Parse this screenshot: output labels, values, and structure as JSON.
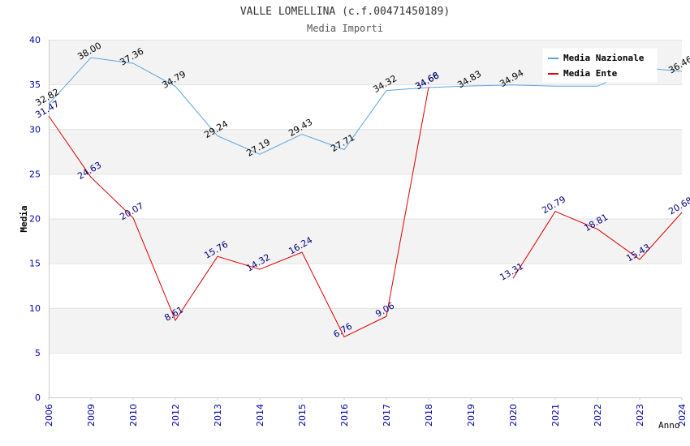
{
  "chart_data": {
    "type": "line",
    "title": "VALLE LOMELLINA (c.f.00471450189)",
    "subtitle": "Media Importi",
    "xlabel": "Anno",
    "ylabel": "Media",
    "ylim": [
      0,
      40
    ],
    "yticks": [
      "0",
      "5",
      "10",
      "15",
      "20",
      "25",
      "30",
      "35",
      "40"
    ],
    "categories": [
      "2006",
      "2009",
      "2010",
      "2012",
      "2013",
      "2014",
      "2015",
      "2016",
      "2017",
      "2018",
      "2019",
      "2020",
      "2021",
      "2022",
      "2023",
      "2024"
    ],
    "legend_position": "top-right",
    "series": [
      {
        "name": "Media Nazionale",
        "color": "#5ba3e0",
        "label_color": "#000000",
        "values": [
          32.82,
          38.0,
          37.36,
          34.79,
          29.24,
          27.19,
          29.43,
          27.71,
          34.32,
          34.66,
          34.83,
          34.94,
          34.8,
          34.8,
          36.9,
          36.46
        ],
        "labels": [
          "32.82",
          "38.00",
          "37.36",
          "34.79",
          "29.24",
          "27.19",
          "29.43",
          "27.71",
          "34.32",
          "34.66",
          "34.83",
          "34.94",
          null,
          null,
          null,
          "36.46"
        ]
      },
      {
        "name": "Media Ente",
        "color": "#dd0000",
        "label_color": "#000080",
        "values": [
          31.47,
          24.63,
          20.07,
          8.61,
          15.76,
          14.32,
          16.24,
          6.76,
          9.06,
          34.68,
          null,
          13.31,
          20.79,
          18.81,
          15.43,
          20.68
        ],
        "labels": [
          "31.47",
          "24.63",
          "20.07",
          "8.61",
          "15.76",
          "14.32",
          "16.24",
          "6.76",
          "9.06",
          "34.68",
          null,
          "13.31",
          "20.79",
          "18.81",
          "15.43",
          "20.68"
        ]
      }
    ]
  }
}
